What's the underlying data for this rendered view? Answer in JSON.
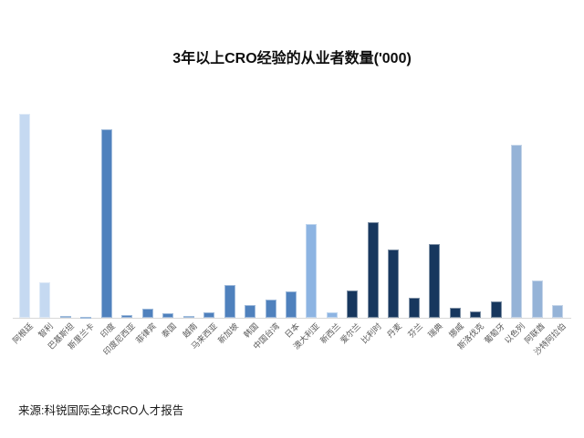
{
  "source_note": "来源:科锐国际全球CRO人才报告",
  "colors": {
    "light_blue": "#c5d9f1",
    "medium_blue": "#4f81bd",
    "cornflower_blue": "#8db4e2",
    "dark_navy": "#17375e",
    "steel_blue": "#95b3d7",
    "axis_line": "#d9d9d9",
    "label_text": "#595959",
    "title_text": "#0d0d0d"
  },
  "chart_data": {
    "type": "bar",
    "title": "3年以上CRO经验的从业者数量('000)",
    "xlabel": "",
    "ylabel": "",
    "legend": false,
    "grid": false,
    "y_axis_labels_visible": false,
    "note": "no y-axis scale shown; values estimated from relative bar heights",
    "ylim": [
      0,
      24
    ],
    "categories": [
      "阿根廷",
      "智利",
      "巴基斯坦",
      "斯里兰卡",
      "印度",
      "印度尼西亚",
      "菲律宾",
      "泰国",
      "越南",
      "马来西亚",
      "新加坡",
      "韩国",
      "中国台湾",
      "日本",
      "澳大利亚",
      "新西兰",
      "爱尔兰",
      "比利时",
      "丹麦",
      "芬兰",
      "瑞典",
      "挪威",
      "斯洛伐克",
      "葡萄牙",
      "以色列",
      "阿联酋",
      "沙特阿拉伯"
    ],
    "values": [
      22.4,
      3.9,
      0.2,
      0.1,
      20.7,
      0.3,
      1.0,
      0.5,
      0.2,
      0.6,
      3.6,
      1.4,
      2.0,
      2.9,
      10.3,
      0.6,
      3.0,
      10.5,
      7.5,
      2.2,
      8.1,
      1.1,
      0.7,
      1.8,
      19.0,
      4.1,
      1.4
    ],
    "bar_colors": [
      "#c5d9f1",
      "#c5d9f1",
      "#4f81bd",
      "#4f81bd",
      "#4f81bd",
      "#4f81bd",
      "#4f81bd",
      "#4f81bd",
      "#4f81bd",
      "#4f81bd",
      "#4f81bd",
      "#4f81bd",
      "#4f81bd",
      "#4f81bd",
      "#8db4e2",
      "#8db4e2",
      "#17375e",
      "#17375e",
      "#17375e",
      "#17375e",
      "#17375e",
      "#17375e",
      "#17375e",
      "#17375e",
      "#95b3d7",
      "#95b3d7",
      "#95b3d7"
    ]
  }
}
